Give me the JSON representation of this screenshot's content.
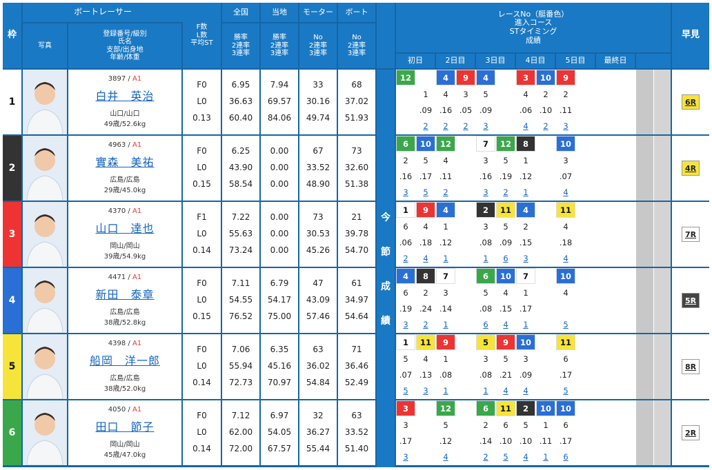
{
  "headers": {
    "waku": "枠",
    "photo": "写真",
    "racer_group": "ボートレーサー",
    "racer_info": [
      "登録番号/級別",
      "氏名",
      "支部/出身地",
      "年齢/体重"
    ],
    "fl": [
      "F数",
      "L数",
      "平均ST"
    ],
    "zenkoku": "全国",
    "tochi": "当地",
    "motor": "モーター",
    "boat": "ボート",
    "zenkoku_sub": [
      "勝率",
      "2連率",
      "3連率"
    ],
    "tochi_sub": [
      "勝率",
      "2連率",
      "3連率"
    ],
    "motor_sub": [
      "No",
      "2連率",
      "3連率"
    ],
    "boat_sub": [
      "No",
      "2連率",
      "3連率"
    ],
    "race_header": [
      "レースNo（艇番色）",
      "進入コース",
      "STタイミング",
      "成績"
    ],
    "days": [
      "初日",
      "2日目",
      "3日目",
      "4日目",
      "5日目",
      "最終日"
    ],
    "hayami": "早見"
  },
  "konsetsu": [
    "今",
    "節",
    "成",
    "績"
  ],
  "colors": {
    "1": "#ffffff",
    "2": "#333333",
    "3": "#ee3333",
    "4": "#2a6fd6",
    "5": "#f6e43a",
    "6": "#3aa84a"
  },
  "racers": [
    {
      "waku": "1",
      "reg": "3897",
      "cls": "A1",
      "name": "白井　英治",
      "branch": "山口/山口",
      "age": "49歳/52.6kg",
      "f": "F0",
      "l": "L0",
      "st": "0.13",
      "zen": [
        "6.95",
        "36.63",
        "60.40"
      ],
      "toc": [
        "7.94",
        "69.57",
        "84.06"
      ],
      "mot": [
        "33",
        "30.16",
        "49.74"
      ],
      "boa": [
        "68",
        "37.02",
        "51.93"
      ],
      "hayami": "6R",
      "races": [
        [
          "12",
          "",
          "",
          ""
        ],
        [
          "",
          "1",
          ".09",
          "2"
        ],
        [
          "4",
          "4",
          ".16",
          "2"
        ],
        [
          "9",
          "3",
          ".05",
          "2"
        ],
        [
          "4",
          "5",
          ".09",
          "3"
        ],
        [
          "",
          "",
          "",
          ""
        ],
        [
          "3",
          "4",
          ".06",
          "4"
        ],
        [
          "10",
          "2",
          ".10",
          "2"
        ],
        [
          "9",
          "2",
          ".11",
          "3"
        ],
        [
          "",
          "",
          "",
          ""
        ]
      ]
    },
    {
      "waku": "2",
      "reg": "4963",
      "cls": "A1",
      "name": "實森　美祐",
      "branch": "広島/広島",
      "age": "29歳/45.0kg",
      "f": "F0",
      "l": "L0",
      "st": "0.15",
      "zen": [
        "6.25",
        "43.90",
        "58.54"
      ],
      "toc": [
        "0.00",
        "0.00",
        "0.00"
      ],
      "mot": [
        "67",
        "33.52",
        "48.90"
      ],
      "boa": [
        "73",
        "32.60",
        "51.38"
      ],
      "hayami": "4R",
      "races": [
        [
          "6",
          "2",
          ".16",
          "3"
        ],
        [
          "10",
          "5",
          ".17",
          "5"
        ],
        [
          "12",
          "4",
          ".11",
          "2"
        ],
        [
          "",
          "",
          "",
          ""
        ],
        [
          "7",
          "3",
          ".16",
          "3"
        ],
        [
          "12",
          "5",
          ".19",
          "2"
        ],
        [
          "8",
          "1",
          ".12",
          "1"
        ],
        [
          "",
          "",
          "",
          ""
        ],
        [
          "10",
          "3",
          ".07",
          "4"
        ],
        [
          "",
          "",
          "",
          ""
        ]
      ]
    },
    {
      "waku": "3",
      "reg": "4370",
      "cls": "A1",
      "name": "山口　達也",
      "branch": "岡山/岡山",
      "age": "39歳/54.9kg",
      "f": "F1",
      "l": "L0",
      "st": "0.14",
      "zen": [
        "7.22",
        "55.63",
        "73.24"
      ],
      "toc": [
        "0.00",
        "0.00",
        "0.00"
      ],
      "mot": [
        "73",
        "30.53",
        "45.26"
      ],
      "boa": [
        "21",
        "39.78",
        "54.70"
      ],
      "hayami": "7R",
      "races": [
        [
          "1",
          "6",
          ".06",
          "2"
        ],
        [
          "9",
          "4",
          ".18",
          "4"
        ],
        [
          "4",
          "1",
          ".12",
          "1"
        ],
        [
          "",
          "",
          "",
          ""
        ],
        [
          "2",
          "3",
          ".08",
          "1"
        ],
        [
          "11",
          "5",
          ".09",
          "6"
        ],
        [
          "4",
          "2",
          ".15",
          "3"
        ],
        [
          "",
          "",
          "",
          ""
        ],
        [
          "11",
          "4",
          ".18",
          "4"
        ],
        [
          "",
          "",
          "",
          ""
        ]
      ]
    },
    {
      "waku": "4",
      "reg": "4471",
      "cls": "A1",
      "name": "新田　泰章",
      "branch": "広島/広島",
      "age": "38歳/52.8kg",
      "f": "F0",
      "l": "L0",
      "st": "0.15",
      "zen": [
        "7.11",
        "54.55",
        "76.52"
      ],
      "toc": [
        "6.79",
        "54.17",
        "75.00"
      ],
      "mot": [
        "47",
        "43.09",
        "57.46"
      ],
      "boa": [
        "61",
        "34.97",
        "54.64"
      ],
      "hayami": "5R",
      "races": [
        [
          "4",
          "6",
          ".19",
          "3"
        ],
        [
          "8",
          "2",
          ".24",
          "2"
        ],
        [
          "7",
          "3",
          ".14",
          "1"
        ],
        [
          "",
          "",
          "",
          ""
        ],
        [
          "6",
          "5",
          ".08",
          "6"
        ],
        [
          "10",
          "4",
          ".15",
          "4"
        ],
        [
          "7",
          "1",
          ".17",
          "1"
        ],
        [
          "",
          "",
          "",
          ""
        ],
        [
          "10",
          "4",
          "",
          "5"
        ],
        [
          "",
          "",
          "",
          ""
        ]
      ]
    },
    {
      "waku": "5",
      "reg": "4398",
      "cls": "A1",
      "name": "船岡　洋一郎",
      "branch": "広島/広島",
      "age": "38歳/52.0kg",
      "f": "F0",
      "l": "L0",
      "st": "0.14",
      "zen": [
        "7.06",
        "55.94",
        "72.73"
      ],
      "toc": [
        "6.35",
        "45.16",
        "70.97"
      ],
      "mot": [
        "63",
        "36.02",
        "54.84"
      ],
      "boa": [
        "71",
        "36.46",
        "52.49"
      ],
      "hayami": "8R",
      "races": [
        [
          "1",
          "5",
          ".07",
          "5"
        ],
        [
          "11",
          "4",
          ".13",
          "3"
        ],
        [
          "9",
          "1",
          ".08",
          "1"
        ],
        [
          "",
          "",
          "",
          ""
        ],
        [
          "5",
          "3",
          ".08",
          "1"
        ],
        [
          "9",
          "5",
          ".21",
          "4"
        ],
        [
          "10",
          "3",
          ".09",
          "4"
        ],
        [
          "",
          "",
          "",
          ""
        ],
        [
          "11",
          "6",
          ".17",
          "5"
        ],
        [
          "",
          "",
          "",
          ""
        ]
      ]
    },
    {
      "waku": "6",
      "reg": "4050",
      "cls": "A1",
      "name": "田口　節子",
      "branch": "岡山/岡山",
      "age": "45歳/47.0kg",
      "f": "F0",
      "l": "L0",
      "st": "0.14",
      "zen": [
        "7.12",
        "62.00",
        "72.00"
      ],
      "toc": [
        "6.97",
        "54.05",
        "67.57"
      ],
      "mot": [
        "32",
        "36.27",
        "55.44"
      ],
      "boa": [
        "63",
        "33.52",
        "51.40"
      ],
      "hayami": "2R",
      "races": [
        [
          "3",
          "3",
          ".17",
          "3"
        ],
        [
          "",
          "",
          "",
          ""
        ],
        [
          "12",
          "5",
          ".12",
          "4"
        ],
        [
          "",
          "",
          "",
          ""
        ],
        [
          "6",
          "2",
          ".14",
          "2"
        ],
        [
          "11",
          "6",
          ".10",
          "5"
        ],
        [
          "2",
          "5",
          ".10",
          "4"
        ],
        [
          "10",
          "1",
          ".11",
          "1"
        ],
        [
          "10",
          "6",
          ".17",
          "6"
        ],
        [
          "",
          "",
          "",
          ""
        ]
      ]
    }
  ]
}
